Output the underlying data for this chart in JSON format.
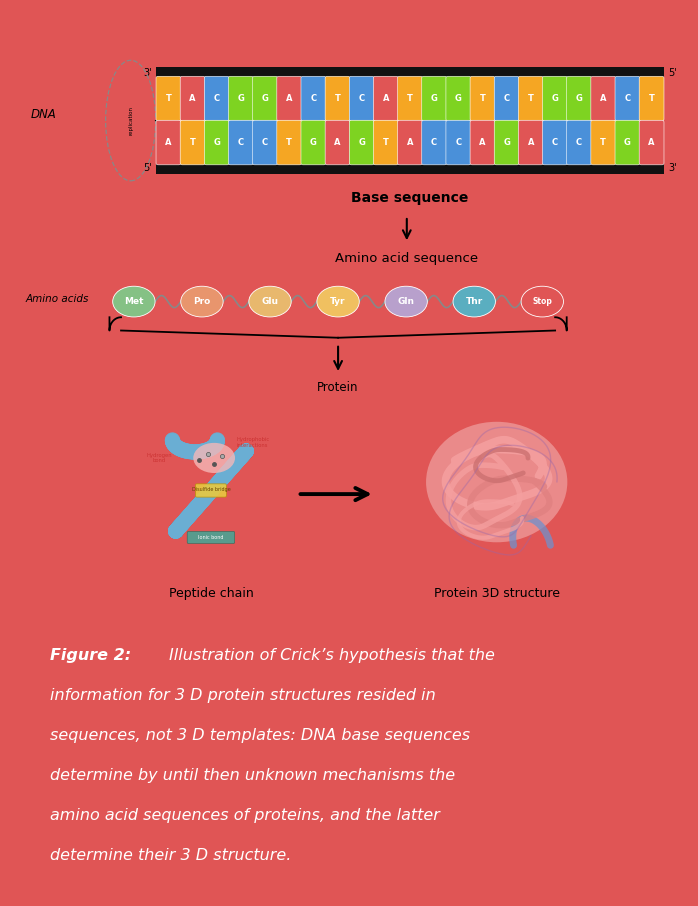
{
  "background_color": "#e05555",
  "panel_bg": "#ffffff",
  "figure_width": 6.98,
  "figure_height": 9.06,
  "dna_top_strand": [
    "T",
    "A",
    "C",
    "G",
    "G",
    "A",
    "C",
    "T",
    "C",
    "A",
    "T",
    "G",
    "G",
    "T",
    "C",
    "T",
    "G",
    "G",
    "A",
    "C",
    "T"
  ],
  "dna_bot_strand": [
    "A",
    "T",
    "G",
    "C",
    "C",
    "T",
    "G",
    "A",
    "G",
    "T",
    "A",
    "C",
    "C",
    "A",
    "G",
    "A",
    "C",
    "C",
    "T",
    "G",
    "A"
  ],
  "base_colors": {
    "T": "#f5a623",
    "A": "#e05555",
    "C": "#4a90d9",
    "G": "#7ed321"
  },
  "amino_acids": [
    {
      "label": "Met",
      "color": "#85c185"
    },
    {
      "label": "Pro",
      "color": "#e8956d"
    },
    {
      "label": "Glu",
      "color": "#e8b86d"
    },
    {
      "label": "Tyr",
      "color": "#f0c060"
    },
    {
      "label": "Gln",
      "color": "#b8a0cc"
    },
    {
      "label": "Thr",
      "color": "#5aaec0"
    },
    {
      "label": "Stop",
      "color": "#e05555"
    }
  ],
  "dna_label": "DNA",
  "amino_label": "Amino acids",
  "base_seq_label": "Base sequence",
  "amino_seq_label": "Amino acid sequence",
  "protein_label": "Protein",
  "peptide_label": "Peptide chain",
  "protein3d_label": "Protein 3D structure",
  "replication_label": "replication",
  "caption_line0_bold": "Figure 2: ",
  "caption_line0_rest": "Illustration of Crick’s hypothesis that the",
  "caption_lines_rest": [
    "information for 3 D protein structures resided in",
    "sequences, not 3 D templates: DNA base sequences",
    "determine by until then unknown mechanisms the",
    "amino acid sequences of proteins, and the latter",
    "determine their 3 D structure."
  ]
}
